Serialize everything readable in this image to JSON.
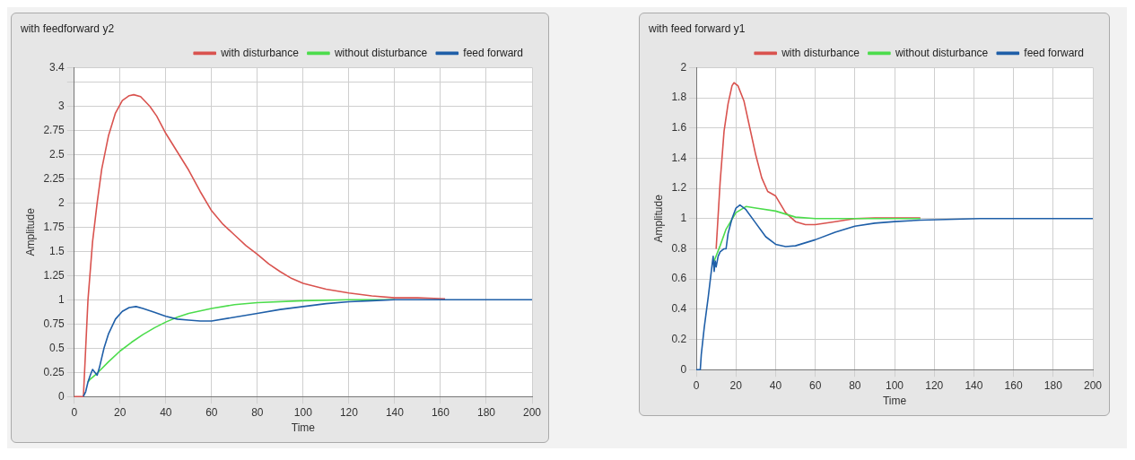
{
  "chart_data": [
    {
      "type": "line",
      "title": "with feedforward y2",
      "xlabel": "Time",
      "ylabel": "Amplitude",
      "xlim": [
        0,
        200
      ],
      "xticks": [
        0,
        20,
        40,
        60,
        80,
        100,
        120,
        140,
        160,
        180,
        200
      ],
      "ylim": [
        0,
        3.4
      ],
      "yticks": [
        0,
        0.25,
        0.5,
        0.75,
        1,
        1.25,
        1.5,
        1.75,
        2,
        2.25,
        2.5,
        2.75,
        3,
        {
          "value": 3.25,
          "label": null
        },
        3.4
      ],
      "grid": true,
      "legend": "top right",
      "marker": "none",
      "line_style": "solid",
      "series": [
        {
          "name": "with disturbance",
          "color": "#d9534f",
          "x": [
            0,
            4,
            5,
            6,
            8,
            10,
            12,
            15,
            18,
            21,
            24,
            26,
            29,
            33,
            36,
            40,
            45,
            50,
            55,
            60,
            65,
            70,
            75,
            80,
            85,
            90,
            95,
            100,
            110,
            120,
            130,
            140,
            150,
            162
          ],
          "values": [
            0,
            0,
            0.5,
            1.0,
            1.6,
            2.0,
            2.35,
            2.7,
            2.93,
            3.06,
            3.11,
            3.12,
            3.1,
            3.0,
            2.9,
            2.72,
            2.53,
            2.34,
            2.12,
            1.92,
            1.78,
            1.67,
            1.56,
            1.47,
            1.37,
            1.29,
            1.22,
            1.17,
            1.11,
            1.07,
            1.04,
            1.02,
            1.02,
            1.01
          ]
        },
        {
          "name": "without disturbance",
          "color": "#4cdc4c",
          "x": [
            6,
            7,
            10,
            15,
            20,
            25,
            30,
            35,
            40,
            45,
            50,
            60,
            70,
            80,
            100,
            120,
            140
          ],
          "values": [
            0.15,
            0.18,
            0.24,
            0.36,
            0.47,
            0.56,
            0.64,
            0.71,
            0.77,
            0.82,
            0.86,
            0.91,
            0.95,
            0.97,
            0.99,
            1.0,
            1.0
          ]
        },
        {
          "name": "feed forward",
          "color": "#1f5fa8",
          "x": [
            4,
            5,
            6,
            7,
            8,
            9,
            10,
            11,
            13,
            15,
            18,
            21,
            24,
            27,
            30,
            35,
            40,
            45,
            50,
            55,
            60,
            70,
            80,
            90,
            100,
            110,
            120,
            130,
            140,
            200
          ],
          "values": [
            0,
            0.05,
            0.15,
            0.22,
            0.28,
            0.25,
            0.22,
            0.3,
            0.5,
            0.65,
            0.8,
            0.88,
            0.92,
            0.93,
            0.91,
            0.87,
            0.83,
            0.8,
            0.79,
            0.78,
            0.78,
            0.82,
            0.86,
            0.9,
            0.93,
            0.96,
            0.98,
            0.99,
            1.0,
            1.0
          ]
        }
      ]
    },
    {
      "type": "line",
      "title": "with feed forward y1",
      "xlabel": "Time",
      "ylabel": "Amplitude",
      "xlim": [
        0,
        200
      ],
      "xticks": [
        0,
        20,
        40,
        60,
        80,
        100,
        120,
        140,
        160,
        180,
        200
      ],
      "ylim": [
        0,
        2
      ],
      "yticks": [
        0,
        0.2,
        0.4,
        0.6,
        0.8,
        1,
        1.2,
        1.4,
        1.6,
        1.8,
        2
      ],
      "grid": true,
      "legend": "top right",
      "marker": "none",
      "line_style": "solid",
      "series": [
        {
          "name": "with disturbance",
          "color": "#d9534f",
          "x": [
            10,
            12,
            14,
            16,
            18,
            19,
            21,
            24,
            27,
            30,
            33,
            36,
            40,
            45,
            50,
            55,
            60,
            70,
            80,
            90,
            113
          ],
          "values": [
            0.8,
            1.24,
            1.58,
            1.76,
            1.88,
            1.9,
            1.88,
            1.78,
            1.6,
            1.42,
            1.27,
            1.18,
            1.15,
            1.04,
            0.98,
            0.96,
            0.96,
            0.98,
            1.0,
            1.005,
            1.005
          ]
        },
        {
          "name": "without disturbance",
          "color": "#4cdc4c",
          "x": [
            9,
            12,
            15,
            20,
            25,
            30,
            40,
            50,
            60,
            113
          ],
          "values": [
            0.72,
            0.82,
            0.93,
            1.04,
            1.08,
            1.07,
            1.05,
            1.01,
            1.0,
            1.0
          ]
        },
        {
          "name": "feed forward",
          "color": "#1f5fa8",
          "x": [
            0,
            2,
            2.5,
            4,
            6,
            8,
            8.5,
            9,
            9.5,
            10,
            11,
            12,
            14,
            15,
            16,
            18,
            20,
            22,
            25,
            30,
            35,
            40,
            45,
            50,
            60,
            70,
            80,
            90,
            100,
            113,
            143,
            200
          ],
          "values": [
            0,
            0,
            0.1,
            0.28,
            0.48,
            0.7,
            0.75,
            0.65,
            0.72,
            0.68,
            0.75,
            0.78,
            0.8,
            0.8,
            0.9,
            1.0,
            1.07,
            1.09,
            1.06,
            0.97,
            0.88,
            0.83,
            0.815,
            0.82,
            0.86,
            0.91,
            0.95,
            0.97,
            0.98,
            0.99,
            1.0,
            1.0
          ]
        }
      ]
    }
  ]
}
